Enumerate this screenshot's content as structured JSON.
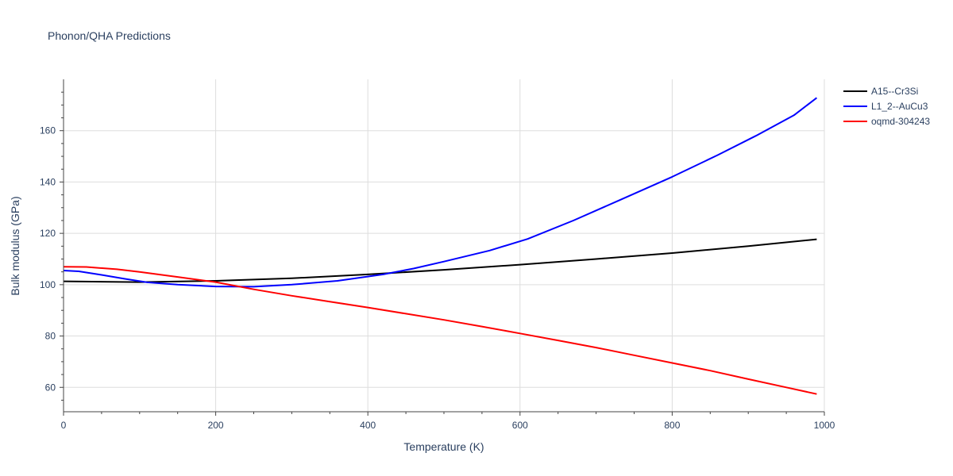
{
  "chart_data": {
    "type": "line",
    "title": "Phonon/QHA Predictions",
    "xlabel": "Temperature (K)",
    "ylabel": "Bulk modulus (GPa)",
    "xlim": [
      0,
      1000
    ],
    "ylim": [
      50.5,
      180
    ],
    "xticks": [
      0,
      200,
      400,
      600,
      800,
      1000
    ],
    "yticks": [
      60,
      80,
      100,
      120,
      140,
      160
    ],
    "grid": true,
    "legend_position": "top-right",
    "series": [
      {
        "name": "A15--Cr3Si",
        "color": "#000000",
        "x": [
          0,
          100,
          200,
          300,
          400,
          500,
          600,
          700,
          800,
          900,
          990
        ],
        "y": [
          101.3,
          101.0,
          101.5,
          102.5,
          104.0,
          105.8,
          107.8,
          110.0,
          112.3,
          115.0,
          117.7
        ]
      },
      {
        "name": "L1_2--AuCu3",
        "color": "#0000ff",
        "x": [
          0,
          20,
          50,
          80,
          110,
          150,
          200,
          250,
          300,
          360,
          420,
          460,
          500,
          560,
          610,
          670,
          730,
          800,
          860,
          910,
          960,
          990
        ],
        "y": [
          105.5,
          105.2,
          103.8,
          102.3,
          100.9,
          100.0,
          99.3,
          99.2,
          100.0,
          101.5,
          104.0,
          106.3,
          109.0,
          113.3,
          117.8,
          125.0,
          132.8,
          142.0,
          150.5,
          158.0,
          166.0,
          172.8
        ]
      },
      {
        "name": "oqmd-304243",
        "color": "#ff0000",
        "x": [
          0,
          30,
          70,
          100,
          150,
          200,
          250,
          300,
          350,
          400,
          450,
          500,
          550,
          600,
          650,
          700,
          750,
          800,
          850,
          900,
          950,
          990
        ],
        "y": [
          107.0,
          106.9,
          106.0,
          105.0,
          103.0,
          101.0,
          98.2,
          95.7,
          93.4,
          91.1,
          88.7,
          86.3,
          83.7,
          81.0,
          78.3,
          75.5,
          72.5,
          69.5,
          66.5,
          63.2,
          60.0,
          57.4
        ]
      }
    ]
  }
}
